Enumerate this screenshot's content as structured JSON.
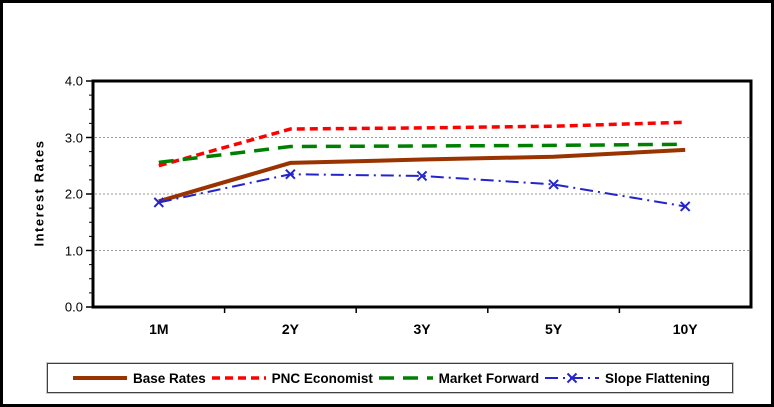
{
  "figure": {
    "background": "#FFFFFF",
    "border_color": "#000000"
  },
  "chart_data": {
    "type": "line",
    "title": "",
    "xlabel": "",
    "ylabel": "Interest Rates",
    "categories": [
      "1M",
      "2Y",
      "3Y",
      "5Y",
      "10Y"
    ],
    "ylim": [
      0.0,
      4.0
    ],
    "yticks": [
      0.0,
      1.0,
      2.0,
      3.0,
      4.0
    ],
    "ytick_labels": [
      "0.0",
      "1.0",
      "2.0",
      "3.0",
      "4.0"
    ],
    "y_minor_step": 0.25,
    "grid": "horizontal-major",
    "gridline_color": "#9a9a9a",
    "legend_position": "bottom",
    "series": [
      {
        "name": "Base Rates",
        "color": "#993300",
        "line_style": "solid",
        "marker": "none",
        "values": [
          1.87,
          2.55,
          2.61,
          2.66,
          2.78
        ]
      },
      {
        "name": "PNC Economist",
        "color": "#FF0000",
        "line_style": "dash",
        "marker": "none",
        "values": [
          2.5,
          3.15,
          3.17,
          3.2,
          3.27
        ]
      },
      {
        "name": "Market Forward",
        "color": "#008000",
        "line_style": "long-dash",
        "marker": "none",
        "values": [
          2.56,
          2.84,
          2.85,
          2.86,
          2.88
        ]
      },
      {
        "name": "Slope Flattening",
        "color": "#2424CC",
        "line_style": "dash-dot",
        "marker": "x",
        "values": [
          1.85,
          2.35,
          2.32,
          2.17,
          1.78
        ]
      }
    ]
  }
}
